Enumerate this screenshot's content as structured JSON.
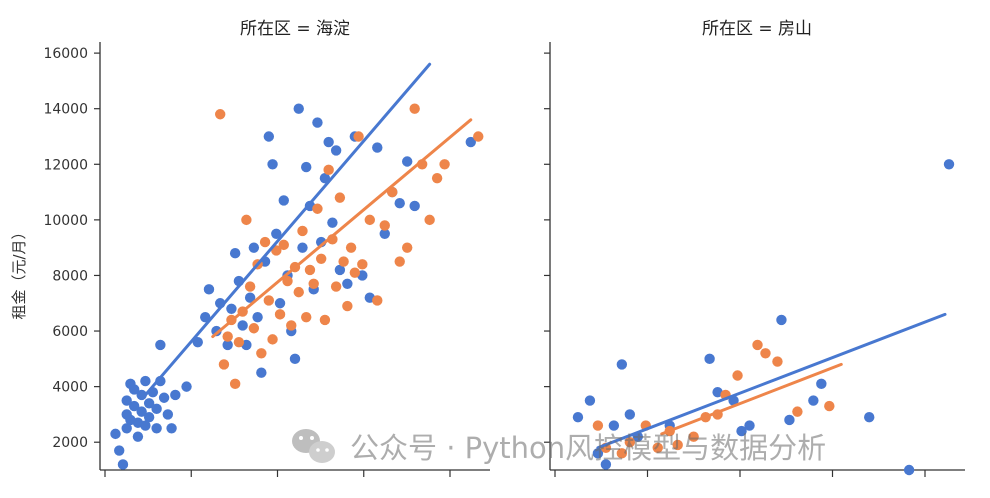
{
  "chart_data": [
    {
      "type": "scatter",
      "panel": "left",
      "title": "所在区 = 海淀",
      "ylabel": "租金（元/月）",
      "ylim": [
        1000,
        16400
      ],
      "xlim": [
        0,
        1
      ],
      "yticks": [
        2000,
        4000,
        6000,
        8000,
        10000,
        12000,
        14000,
        16000
      ],
      "series": [
        {
          "color": "#4878d0",
          "points": [
            [
              0.02,
              2300
            ],
            [
              0.03,
              1700
            ],
            [
              0.04,
              1200
            ],
            [
              0.05,
              2500
            ],
            [
              0.05,
              3000
            ],
            [
              0.05,
              3500
            ],
            [
              0.06,
              2800
            ],
            [
              0.06,
              4100
            ],
            [
              0.07,
              3300
            ],
            [
              0.07,
              3900
            ],
            [
              0.08,
              2200
            ],
            [
              0.08,
              2700
            ],
            [
              0.09,
              3100
            ],
            [
              0.09,
              3700
            ],
            [
              0.1,
              4200
            ],
            [
              0.1,
              2600
            ],
            [
              0.11,
              3400
            ],
            [
              0.11,
              2900
            ],
            [
              0.12,
              3800
            ],
            [
              0.13,
              3200
            ],
            [
              0.13,
              2500
            ],
            [
              0.14,
              5500
            ],
            [
              0.14,
              4200
            ],
            [
              0.15,
              3600
            ],
            [
              0.16,
              3000
            ],
            [
              0.17,
              2500
            ],
            [
              0.18,
              3700
            ],
            [
              0.21,
              4000
            ],
            [
              0.24,
              5600
            ],
            [
              0.26,
              6500
            ],
            [
              0.27,
              7500
            ],
            [
              0.29,
              6000
            ],
            [
              0.3,
              7000
            ],
            [
              0.32,
              5500
            ],
            [
              0.33,
              6800
            ],
            [
              0.34,
              8800
            ],
            [
              0.35,
              7800
            ],
            [
              0.36,
              6200
            ],
            [
              0.37,
              5500
            ],
            [
              0.38,
              7200
            ],
            [
              0.39,
              9000
            ],
            [
              0.4,
              6500
            ],
            [
              0.41,
              4500
            ],
            [
              0.42,
              8500
            ],
            [
              0.43,
              13000
            ],
            [
              0.44,
              12000
            ],
            [
              0.45,
              9500
            ],
            [
              0.46,
              7000
            ],
            [
              0.47,
              10700
            ],
            [
              0.48,
              8000
            ],
            [
              0.49,
              6000
            ],
            [
              0.5,
              5000
            ],
            [
              0.51,
              14000
            ],
            [
              0.52,
              9000
            ],
            [
              0.53,
              11900
            ],
            [
              0.54,
              10500
            ],
            [
              0.55,
              7500
            ],
            [
              0.56,
              13500
            ],
            [
              0.57,
              9200
            ],
            [
              0.58,
              11500
            ],
            [
              0.59,
              12800
            ],
            [
              0.6,
              9900
            ],
            [
              0.61,
              12500
            ],
            [
              0.62,
              8200
            ],
            [
              0.64,
              7700
            ],
            [
              0.66,
              13000
            ],
            [
              0.68,
              8000
            ],
            [
              0.7,
              7200
            ],
            [
              0.72,
              12600
            ],
            [
              0.74,
              9500
            ],
            [
              0.76,
              11000
            ],
            [
              0.78,
              10600
            ],
            [
              0.8,
              12100
            ],
            [
              0.82,
              10500
            ],
            [
              0.97,
              12800
            ]
          ]
        },
        {
          "color": "#ee854a",
          "points": [
            [
              0.3,
              13800
            ],
            [
              0.31,
              4800
            ],
            [
              0.32,
              5800
            ],
            [
              0.33,
              6400
            ],
            [
              0.34,
              4100
            ],
            [
              0.35,
              5600
            ],
            [
              0.36,
              6700
            ],
            [
              0.37,
              10000
            ],
            [
              0.38,
              7600
            ],
            [
              0.39,
              6100
            ],
            [
              0.4,
              8400
            ],
            [
              0.41,
              5200
            ],
            [
              0.42,
              9200
            ],
            [
              0.43,
              7100
            ],
            [
              0.44,
              5700
            ],
            [
              0.45,
              8900
            ],
            [
              0.46,
              6600
            ],
            [
              0.47,
              9100
            ],
            [
              0.48,
              7800
            ],
            [
              0.49,
              6200
            ],
            [
              0.5,
              8300
            ],
            [
              0.51,
              7400
            ],
            [
              0.52,
              9600
            ],
            [
              0.53,
              6500
            ],
            [
              0.54,
              8200
            ],
            [
              0.55,
              7700
            ],
            [
              0.56,
              10400
            ],
            [
              0.57,
              8600
            ],
            [
              0.58,
              6400
            ],
            [
              0.59,
              11800
            ],
            [
              0.6,
              9300
            ],
            [
              0.61,
              7600
            ],
            [
              0.62,
              10800
            ],
            [
              0.63,
              8500
            ],
            [
              0.64,
              6900
            ],
            [
              0.65,
              9000
            ],
            [
              0.66,
              8100
            ],
            [
              0.67,
              13000
            ],
            [
              0.68,
              8400
            ],
            [
              0.7,
              10000
            ],
            [
              0.72,
              7100
            ],
            [
              0.74,
              9800
            ],
            [
              0.76,
              11000
            ],
            [
              0.78,
              8500
            ],
            [
              0.8,
              9000
            ],
            [
              0.82,
              14000
            ],
            [
              0.84,
              12000
            ],
            [
              0.86,
              10000
            ],
            [
              0.88,
              11500
            ],
            [
              0.9,
              12000
            ],
            [
              0.99,
              13000
            ]
          ]
        }
      ],
      "fit_lines": [
        {
          "color": "#4878d0",
          "x": [
            0.1,
            0.86
          ],
          "y": [
            3700,
            15600
          ]
        },
        {
          "color": "#ee854a",
          "x": [
            0.28,
            0.97
          ],
          "y": [
            5800,
            13600
          ]
        }
      ]
    },
    {
      "type": "scatter",
      "panel": "right",
      "title": "所在区 = 房山",
      "ylim": [
        1000,
        16400
      ],
      "xlim": [
        0,
        1
      ],
      "series": [
        {
          "color": "#4878d0",
          "points": [
            [
              0.05,
              2900
            ],
            [
              0.08,
              3500
            ],
            [
              0.1,
              1600
            ],
            [
              0.12,
              1200
            ],
            [
              0.14,
              2600
            ],
            [
              0.16,
              4800
            ],
            [
              0.18,
              3000
            ],
            [
              0.2,
              2200
            ],
            [
              0.28,
              2600
            ],
            [
              0.38,
              5000
            ],
            [
              0.4,
              3800
            ],
            [
              0.44,
              3500
            ],
            [
              0.46,
              2400
            ],
            [
              0.48,
              2600
            ],
            [
              0.56,
              6400
            ],
            [
              0.58,
              2800
            ],
            [
              0.64,
              3500
            ],
            [
              0.66,
              4100
            ],
            [
              0.78,
              2900
            ],
            [
              0.88,
              1000
            ],
            [
              0.98,
              12000
            ]
          ]
        },
        {
          "color": "#ee854a",
          "points": [
            [
              0.1,
              2600
            ],
            [
              0.12,
              1800
            ],
            [
              0.16,
              1600
            ],
            [
              0.18,
              2000
            ],
            [
              0.22,
              2600
            ],
            [
              0.25,
              1800
            ],
            [
              0.28,
              2400
            ],
            [
              0.3,
              1900
            ],
            [
              0.34,
              2200
            ],
            [
              0.37,
              2900
            ],
            [
              0.4,
              3000
            ],
            [
              0.42,
              3700
            ],
            [
              0.45,
              4400
            ],
            [
              0.5,
              5500
            ],
            [
              0.52,
              5200
            ],
            [
              0.55,
              4900
            ],
            [
              0.6,
              3100
            ],
            [
              0.68,
              3300
            ]
          ]
        }
      ],
      "fit_lines": [
        {
          "color": "#4878d0",
          "x": [
            0.1,
            0.97
          ],
          "y": [
            1800,
            6600
          ]
        },
        {
          "color": "#ee854a",
          "x": [
            0.26,
            0.71
          ],
          "y": [
            2300,
            4800
          ]
        }
      ]
    }
  ],
  "watermark": {
    "text": "公众号 · Python风控模型与数据分析",
    "icon": "wechat-icon"
  }
}
